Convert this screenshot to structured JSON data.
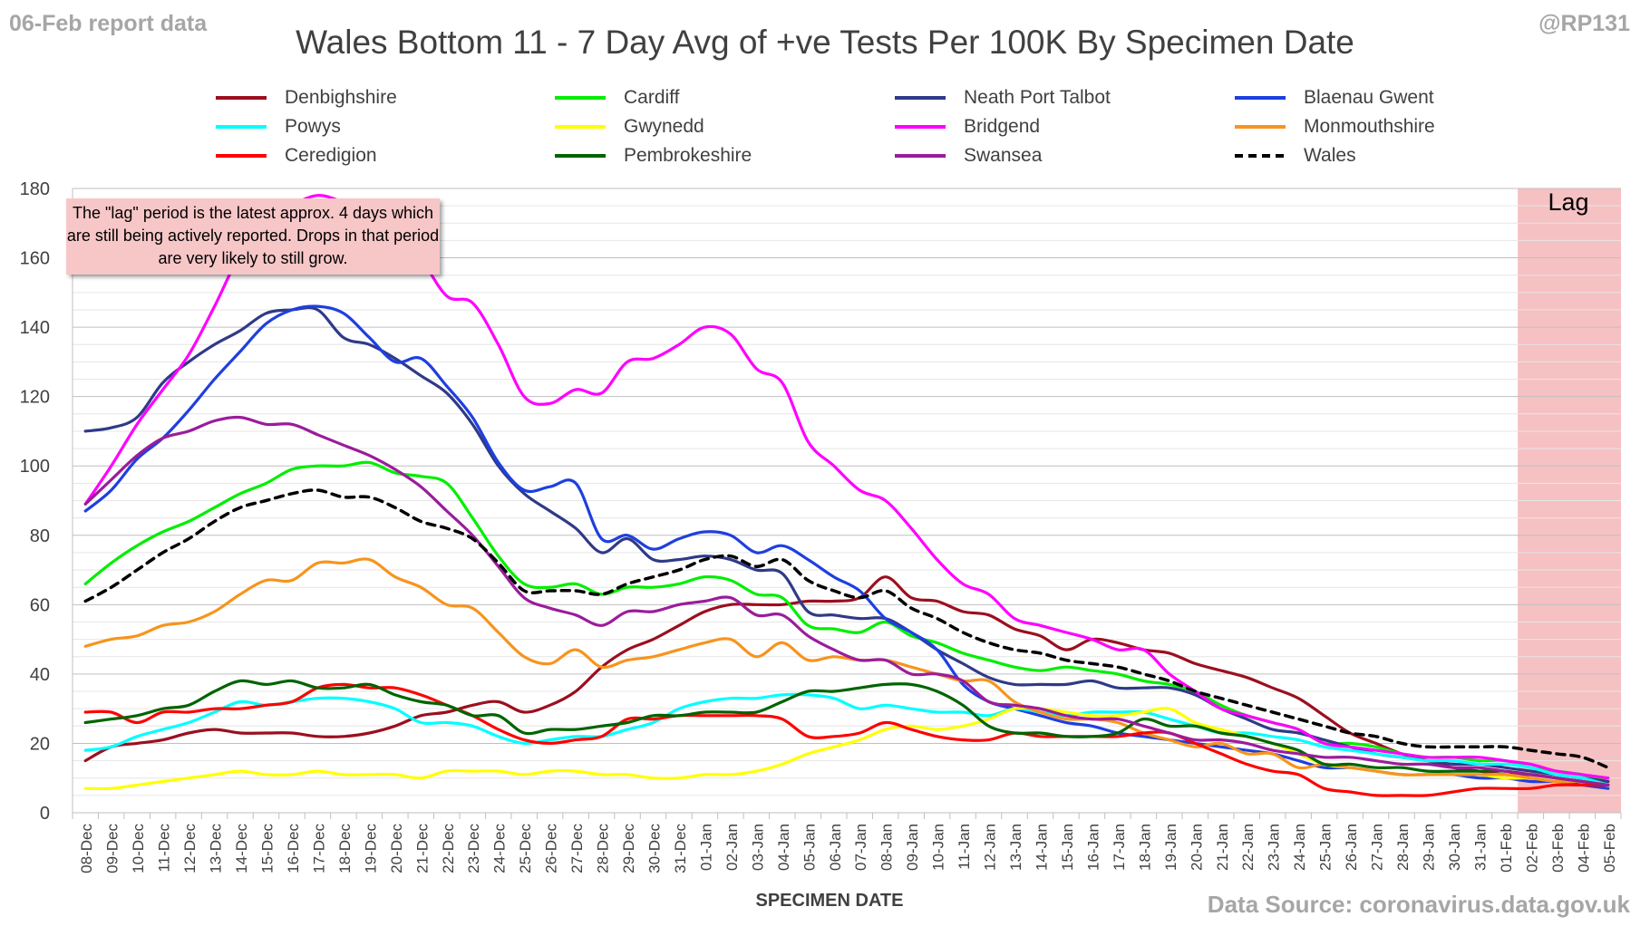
{
  "header": {
    "report_date": "06-Feb report data",
    "handle": "@RP131",
    "title": "Wales Bottom 11 - 7 Day Avg of +ve Tests Per 100K By Specimen Date",
    "source": "Data Source: coronavirus.data.gov.uk"
  },
  "annotations": {
    "note": "The \"lag\" period is the latest approx. 4 days which are still being actively reported. Drops in that period are very likely to still grow.",
    "lag": "Lag"
  },
  "chart_data": {
    "type": "line",
    "title": "Wales Bottom 11 - 7 Day Avg of +ve Tests Per 100K By Specimen Date",
    "xlabel": "SPECIMEN DATE",
    "ylabel": "",
    "ylim": [
      0,
      180
    ],
    "yticks": [
      0,
      20,
      40,
      60,
      80,
      100,
      120,
      140,
      160,
      180
    ],
    "grid": "horizontal",
    "legend_position": "top",
    "lag_period": [
      "02-Feb",
      "05-Feb"
    ],
    "x": [
      "08-Dec",
      "09-Dec",
      "10-Dec",
      "11-Dec",
      "12-Dec",
      "13-Dec",
      "14-Dec",
      "15-Dec",
      "16-Dec",
      "17-Dec",
      "18-Dec",
      "19-Dec",
      "20-Dec",
      "21-Dec",
      "22-Dec",
      "23-Dec",
      "24-Dec",
      "25-Dec",
      "26-Dec",
      "27-Dec",
      "28-Dec",
      "29-Dec",
      "30-Dec",
      "31-Dec",
      "01-Jan",
      "02-Jan",
      "03-Jan",
      "04-Jan",
      "05-Jan",
      "06-Jan",
      "07-Jan",
      "08-Jan",
      "09-Jan",
      "10-Jan",
      "11-Jan",
      "12-Jan",
      "13-Jan",
      "14-Jan",
      "15-Jan",
      "16-Jan",
      "17-Jan",
      "18-Jan",
      "19-Jan",
      "20-Jan",
      "21-Jan",
      "22-Jan",
      "23-Jan",
      "24-Jan",
      "25-Jan",
      "26-Jan",
      "27-Jan",
      "28-Jan",
      "29-Jan",
      "30-Jan",
      "31-Jan",
      "01-Feb",
      "02-Feb",
      "03-Feb",
      "04-Feb",
      "05-Feb"
    ],
    "series": [
      {
        "name": "Denbighshire",
        "color": "#9b0f1f",
        "dash": false,
        "values": [
          15,
          19,
          20,
          21,
          23,
          24,
          23,
          23,
          23,
          22,
          22,
          23,
          25,
          28,
          29,
          31,
          32,
          29,
          31,
          35,
          42,
          47,
          50,
          54,
          58,
          60,
          60,
          60,
          61,
          61,
          62,
          68,
          62,
          61,
          58,
          57,
          53,
          51,
          47,
          50,
          49,
          47,
          46,
          43,
          41,
          39,
          36,
          33,
          28,
          23,
          20,
          17,
          15,
          13,
          12,
          11,
          11,
          10,
          9,
          8
        ]
      },
      {
        "name": "Cardiff",
        "color": "#00ee00",
        "dash": false,
        "values": [
          66,
          72,
          77,
          81,
          84,
          88,
          92,
          95,
          99,
          100,
          100,
          101,
          98,
          97,
          95,
          85,
          74,
          66,
          65,
          66,
          63,
          65,
          65,
          66,
          68,
          67,
          63,
          62,
          54,
          53,
          52,
          55,
          51,
          49,
          46,
          44,
          42,
          41,
          42,
          41,
          40,
          38,
          37,
          35,
          31,
          28,
          26,
          24,
          20,
          20,
          19,
          17,
          16,
          16,
          15,
          15,
          13,
          12,
          11,
          9
        ]
      },
      {
        "name": "Neath Port Talbot",
        "color": "#2f3a87",
        "dash": false,
        "values": [
          110,
          111,
          114,
          124,
          130,
          135,
          139,
          144,
          145,
          145,
          137,
          135,
          131,
          126,
          121,
          112,
          100,
          92,
          87,
          82,
          75,
          79,
          73,
          73,
          74,
          73,
          70,
          69,
          58,
          57,
          56,
          56,
          52,
          47,
          43,
          39,
          37,
          37,
          37,
          38,
          36,
          36,
          36,
          34,
          30,
          27,
          24,
          23,
          21,
          19,
          17,
          16,
          15,
          14,
          14,
          13,
          12,
          11,
          10,
          9
        ]
      },
      {
        "name": "Blaenau Gwent",
        "color": "#1e3fe0",
        "dash": false,
        "values": [
          87,
          93,
          102,
          108,
          116,
          125,
          133,
          141,
          145,
          146,
          144,
          137,
          130,
          131,
          123,
          114,
          101,
          93,
          94,
          95,
          79,
          80,
          76,
          79,
          81,
          80,
          75,
          77,
          73,
          68,
          64,
          56,
          52,
          47,
          37,
          32,
          30,
          28,
          26,
          25,
          23,
          22,
          21,
          20,
          19,
          18,
          17,
          15,
          13,
          13,
          12,
          11,
          11,
          11,
          10,
          10,
          9,
          9,
          8,
          7
        ]
      },
      {
        "name": "Powys",
        "color": "#00ffff",
        "dash": false,
        "values": [
          18,
          19,
          22,
          24,
          26,
          29,
          32,
          31,
          32,
          33,
          33,
          32,
          30,
          26,
          26,
          25,
          22,
          20,
          21,
          22,
          22,
          24,
          26,
          30,
          32,
          33,
          33,
          34,
          34,
          33,
          30,
          31,
          30,
          29,
          29,
          28,
          30,
          29,
          28,
          29,
          29,
          29,
          27,
          25,
          23,
          23,
          22,
          21,
          19,
          18,
          17,
          16,
          15,
          15,
          14,
          14,
          13,
          11,
          10,
          8
        ]
      },
      {
        "name": "Gwynedd",
        "color": "#ffff00",
        "dash": false,
        "values": [
          7,
          7,
          8,
          9,
          10,
          11,
          12,
          11,
          11,
          12,
          11,
          11,
          11,
          10,
          12,
          12,
          12,
          11,
          12,
          12,
          11,
          11,
          10,
          10,
          11,
          11,
          12,
          14,
          17,
          19,
          21,
          24,
          25,
          24,
          25,
          27,
          30,
          30,
          29,
          28,
          28,
          29,
          30,
          26,
          24,
          22,
          20,
          17,
          14,
          13,
          12,
          11,
          11,
          11,
          11,
          10,
          10,
          9,
          9,
          8
        ]
      },
      {
        "name": "Bridgend",
        "color": "#ff00ff",
        "dash": false,
        "values": [
          89,
          100,
          112,
          122,
          132,
          146,
          161,
          170,
          175,
          178,
          176,
          173,
          170,
          160,
          149,
          147,
          135,
          120,
          118,
          122,
          121,
          130,
          131,
          135,
          140,
          138,
          128,
          124,
          107,
          100,
          93,
          90,
          82,
          73,
          66,
          63,
          56,
          54,
          52,
          50,
          47,
          47,
          40,
          35,
          30,
          28,
          26,
          24,
          20,
          19,
          18,
          17,
          16,
          16,
          16,
          15,
          14,
          12,
          11,
          10
        ]
      },
      {
        "name": "Monmouthshire",
        "color": "#f7941d",
        "dash": false,
        "values": [
          48,
          50,
          51,
          54,
          55,
          58,
          63,
          67,
          67,
          72,
          72,
          73,
          68,
          65,
          60,
          59,
          52,
          45,
          43,
          47,
          42,
          44,
          45,
          47,
          49,
          50,
          45,
          49,
          44,
          45,
          44,
          44,
          42,
          40,
          38,
          38,
          32,
          29,
          27,
          27,
          26,
          23,
          21,
          19,
          20,
          17,
          17,
          13,
          14,
          13,
          12,
          11,
          11,
          11,
          11,
          11,
          10,
          9,
          9,
          8
        ]
      },
      {
        "name": "Ceredigion",
        "color": "#ff0000",
        "dash": false,
        "values": [
          29,
          29,
          26,
          29,
          29,
          30,
          30,
          31,
          32,
          36,
          37,
          36,
          36,
          34,
          31,
          28,
          24,
          21,
          20,
          21,
          22,
          27,
          27,
          28,
          28,
          28,
          28,
          27,
          22,
          22,
          23,
          26,
          24,
          22,
          21,
          21,
          23,
          22,
          22,
          22,
          22,
          23,
          23,
          20,
          17,
          14,
          12,
          11,
          7,
          6,
          5,
          5,
          5,
          6,
          7,
          7,
          7,
          8,
          8,
          8
        ]
      },
      {
        "name": "Pembrokeshire",
        "color": "#006400",
        "dash": false,
        "values": [
          26,
          27,
          28,
          30,
          31,
          35,
          38,
          37,
          38,
          36,
          36,
          37,
          34,
          32,
          31,
          28,
          28,
          23,
          24,
          24,
          25,
          26,
          28,
          28,
          29,
          29,
          29,
          32,
          35,
          35,
          36,
          37,
          37,
          35,
          31,
          25,
          23,
          23,
          22,
          22,
          23,
          27,
          25,
          25,
          23,
          22,
          20,
          18,
          14,
          14,
          13,
          13,
          12,
          12,
          12,
          12,
          11,
          10,
          9,
          8
        ]
      },
      {
        "name": "Swansea",
        "color": "#9b1c9b",
        "dash": false,
        "values": [
          89,
          96,
          103,
          108,
          110,
          113,
          114,
          112,
          112,
          109,
          106,
          103,
          99,
          94,
          87,
          80,
          71,
          62,
          59,
          57,
          54,
          58,
          58,
          60,
          61,
          62,
          57,
          57,
          51,
          47,
          44,
          44,
          40,
          40,
          38,
          32,
          31,
          30,
          28,
          27,
          27,
          25,
          23,
          21,
          21,
          20,
          18,
          17,
          16,
          16,
          15,
          14,
          14,
          13,
          13,
          12,
          11,
          10,
          9,
          8
        ]
      },
      {
        "name": "Wales",
        "color": "#000000",
        "dash": true,
        "values": [
          61,
          65,
          70,
          75,
          79,
          84,
          88,
          90,
          92,
          93,
          91,
          91,
          88,
          84,
          82,
          79,
          72,
          64,
          64,
          64,
          63,
          66,
          68,
          70,
          73,
          74,
          71,
          73,
          67,
          64,
          62,
          64,
          59,
          56,
          52,
          49,
          47,
          46,
          44,
          43,
          42,
          40,
          38,
          35,
          33,
          31,
          29,
          27,
          25,
          23,
          22,
          20,
          19,
          19,
          19,
          19,
          18,
          17,
          16,
          13
        ]
      }
    ]
  }
}
